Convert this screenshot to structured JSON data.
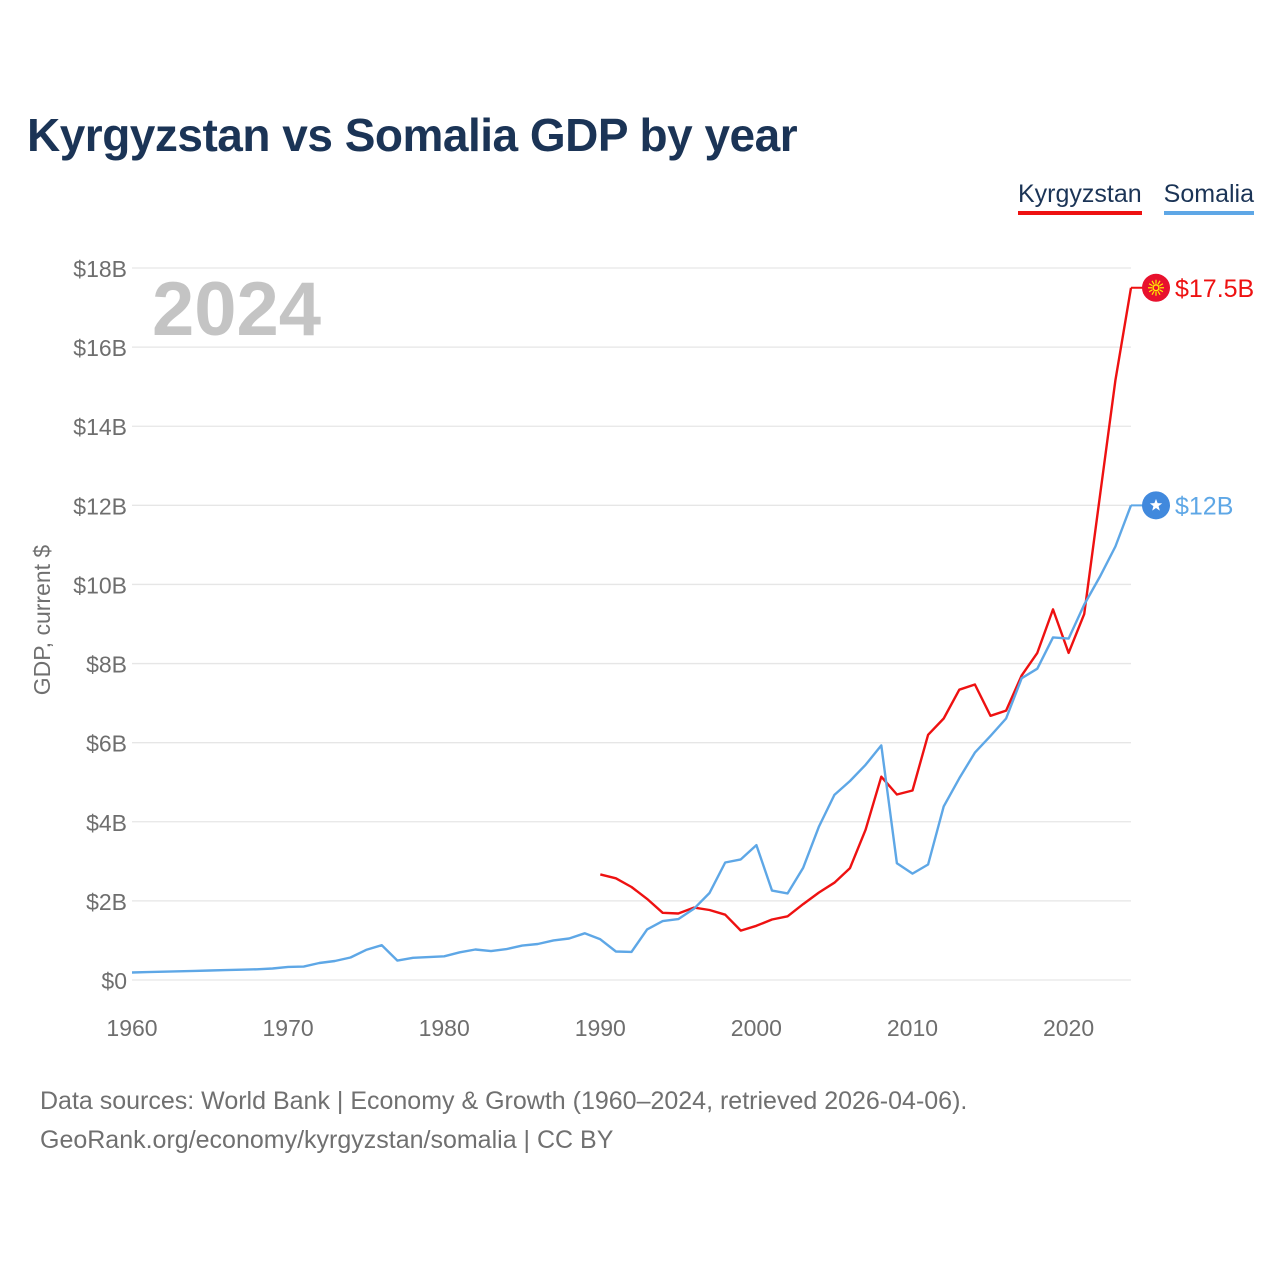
{
  "title": "Kyrgyzstan vs Somalia GDP by year",
  "legend": [
    {
      "name": "Kyrgyzstan",
      "color": "#ee1111"
    },
    {
      "name": "Somalia",
      "color": "#5ea7e6"
    }
  ],
  "year_display": "2024",
  "footer": {
    "line1": "Data sources: World Bank | Economy & Growth (1960–2024, retrieved 2026-04-06).",
    "line2": "GeoRank.org/economy/kyrgyzstan/somalia | CC BY"
  },
  "chart_data": {
    "type": "line",
    "title": "Kyrgyzstan vs Somalia GDP by year",
    "xlabel": "",
    "ylabel": "GDP, current $",
    "xlim": [
      1960,
      2024
    ],
    "ylim": [
      0,
      18
    ],
    "x_ticks": [
      {
        "value": 1960,
        "label": "1960"
      },
      {
        "value": 1970,
        "label": "1970"
      },
      {
        "value": 1980,
        "label": "1980"
      },
      {
        "value": 1990,
        "label": "1990"
      },
      {
        "value": 2000,
        "label": "2000"
      },
      {
        "value": 2010,
        "label": "2010"
      },
      {
        "value": 2020,
        "label": "2020"
      }
    ],
    "y_ticks": [
      {
        "value": 0,
        "label": "$0"
      },
      {
        "value": 2,
        "label": "$2B"
      },
      {
        "value": 4,
        "label": "$4B"
      },
      {
        "value": 6,
        "label": "$6B"
      },
      {
        "value": 8,
        "label": "$8B"
      },
      {
        "value": 10,
        "label": "$10B"
      },
      {
        "value": 12,
        "label": "$12B"
      },
      {
        "value": 14,
        "label": "$14B"
      },
      {
        "value": 16,
        "label": "$16B"
      },
      {
        "value": 18,
        "label": "$18B"
      }
    ],
    "grid": true,
    "legend_position": "top-right",
    "series": [
      {
        "name": "Kyrgyzstan",
        "color": "#ee1111",
        "end_label": "$17.5B",
        "end_icon": "kyrgyzstan-flag-icon",
        "x": [
          1990,
          1991,
          1992,
          1993,
          1994,
          1995,
          1996,
          1997,
          1998,
          1999,
          2000,
          2001,
          2002,
          2003,
          2004,
          2005,
          2006,
          2007,
          2008,
          2009,
          2010,
          2011,
          2012,
          2013,
          2014,
          2015,
          2016,
          2017,
          2018,
          2019,
          2020,
          2021,
          2022,
          2023,
          2024
        ],
        "values": [
          2.67,
          2.57,
          2.35,
          2.05,
          1.7,
          1.68,
          1.83,
          1.77,
          1.65,
          1.25,
          1.37,
          1.53,
          1.61,
          1.92,
          2.21,
          2.46,
          2.83,
          3.8,
          5.14,
          4.69,
          4.79,
          6.2,
          6.61,
          7.34,
          7.47,
          6.68,
          6.81,
          7.7,
          8.27,
          9.37,
          8.27,
          9.25,
          12.21,
          15.16,
          17.5
        ]
      },
      {
        "name": "Somalia",
        "color": "#5ea7e6",
        "end_label": "$12B",
        "end_icon": "somalia-flag-icon",
        "x": [
          1960,
          1961,
          1962,
          1963,
          1964,
          1965,
          1966,
          1967,
          1968,
          1969,
          1970,
          1971,
          1972,
          1973,
          1974,
          1975,
          1976,
          1977,
          1978,
          1979,
          1980,
          1981,
          1982,
          1983,
          1984,
          1985,
          1986,
          1987,
          1988,
          1989,
          1990,
          1991,
          1992,
          1993,
          1994,
          1995,
          1996,
          1997,
          1998,
          1999,
          2000,
          2001,
          2002,
          2003,
          2004,
          2005,
          2006,
          2007,
          2008,
          2009,
          2010,
          2011,
          2012,
          2013,
          2014,
          2015,
          2016,
          2017,
          2018,
          2019,
          2020,
          2021,
          2022,
          2023,
          2024
        ],
        "values": [
          0.19,
          0.2,
          0.21,
          0.22,
          0.23,
          0.24,
          0.25,
          0.26,
          0.27,
          0.29,
          0.33,
          0.34,
          0.43,
          0.48,
          0.57,
          0.76,
          0.88,
          0.49,
          0.56,
          0.58,
          0.6,
          0.7,
          0.77,
          0.73,
          0.78,
          0.87,
          0.91,
          1.0,
          1.05,
          1.18,
          1.03,
          0.72,
          0.71,
          1.28,
          1.49,
          1.54,
          1.8,
          2.2,
          2.97,
          3.05,
          3.41,
          2.26,
          2.19,
          2.84,
          3.87,
          4.68,
          5.03,
          5.44,
          5.93,
          2.95,
          2.69,
          2.92,
          4.39,
          5.1,
          5.75,
          6.17,
          6.61,
          7.63,
          7.87,
          8.66,
          8.63,
          9.49,
          10.19,
          10.96,
          12.0
        ]
      }
    ]
  }
}
